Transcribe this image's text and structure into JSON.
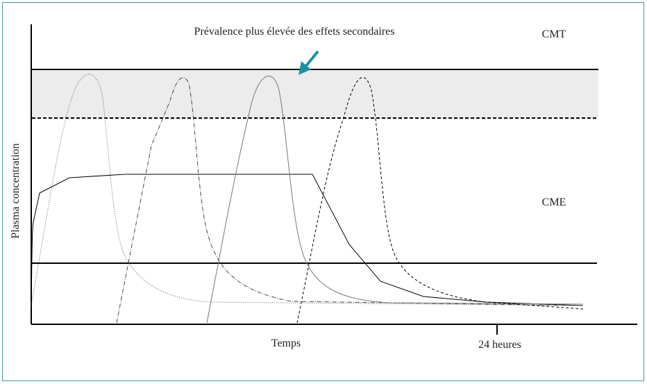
{
  "annotation": "Prévalence plus élevée des effets secondaires",
  "upper_label": "CMT",
  "lower_label": "CME",
  "y_axis_label": "Plasma concentration",
  "x_axis_label": "Temps",
  "x_tick_label": "24 heures"
}
